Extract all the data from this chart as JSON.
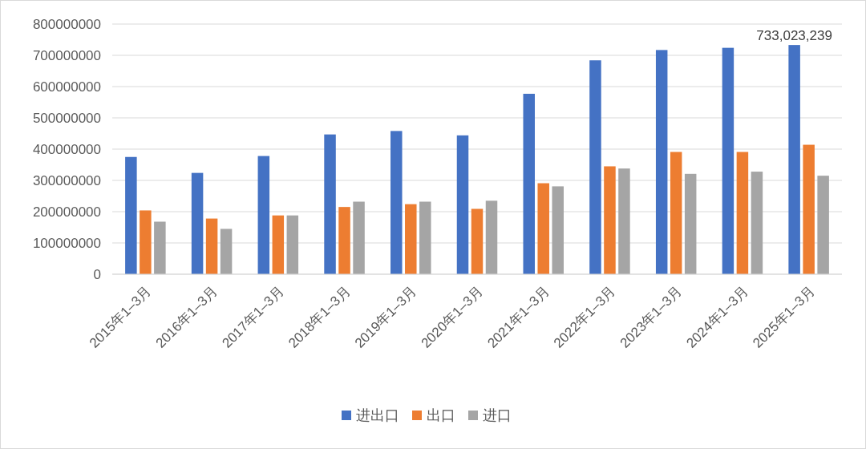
{
  "chart_data": {
    "type": "bar",
    "categories": [
      "2015年1–3月",
      "2016年1–3月",
      "2017年1–3月",
      "2018年1–3月",
      "2019年1–3月",
      "2020年1–3月",
      "2021年1–3月",
      "2022年1–3月",
      "2023年1–3月",
      "2024年1–3月",
      "2025年1–3月"
    ],
    "series": [
      {
        "name": "进出口",
        "color": "#4472c4",
        "values": [
          375000000,
          324000000,
          378000000,
          447000000,
          458000000,
          444000000,
          577000000,
          684000000,
          717000000,
          724000000,
          733023239
        ],
        "value_labels": [
          null,
          null,
          null,
          null,
          null,
          null,
          null,
          null,
          null,
          null,
          "733,023,239"
        ]
      },
      {
        "name": "出口",
        "color": "#ed7d31",
        "values": [
          204000000,
          178000000,
          188000000,
          215000000,
          224000000,
          209000000,
          291000000,
          345000000,
          391000000,
          391000000,
          414000000
        ]
      },
      {
        "name": "进口",
        "color": "#a5a5a5",
        "values": [
          168000000,
          145000000,
          188000000,
          232000000,
          232000000,
          235000000,
          281000000,
          338000000,
          321000000,
          328000000,
          315000000
        ]
      }
    ],
    "ylim": [
      0,
      800000000
    ],
    "yticks": [
      0,
      100000000,
      200000000,
      300000000,
      400000000,
      500000000,
      600000000,
      700000000,
      800000000
    ],
    "grid": "y",
    "legend": "bottom"
  }
}
